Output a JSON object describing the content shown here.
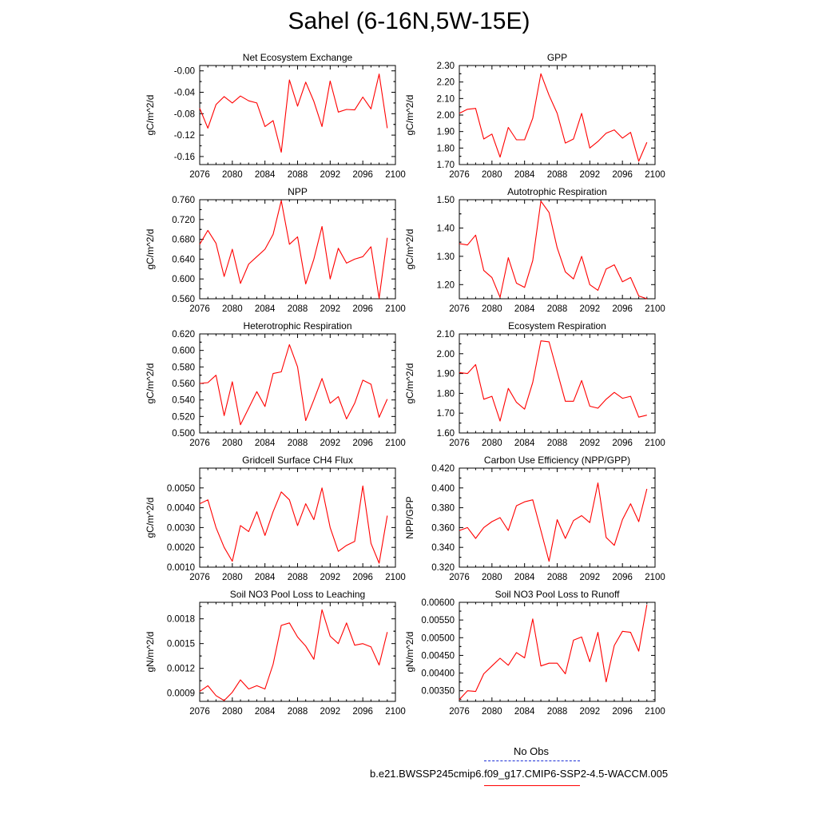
{
  "title": "Sahel (6-16N,5W-15E)",
  "legend": {
    "obs_label": "No Obs",
    "model_label": "b.e21.BWSSP245cmip6.f09_g17.CMIP6-SSP2-4.5-WACCM.005",
    "obs_color": "#1b2fd6",
    "model_color": "#ff0000"
  },
  "chart_data": [
    {
      "type": "line",
      "title": "Net Ecosystem Exchange",
      "ylabel": "gC/m^2/d",
      "xlim": [
        2076,
        2100
      ],
      "ylim": [
        -0.175,
        0.01
      ],
      "xticks": [
        2076,
        2080,
        2084,
        2088,
        2092,
        2096,
        2100
      ],
      "yticks": [
        -0.16,
        -0.12,
        -0.08,
        -0.04,
        0.0
      ],
      "ytick_labels": [
        "-0.16",
        "-0.12",
        "-0.08",
        "-0.04",
        "-0.00"
      ],
      "x": [
        2076,
        2077,
        2078,
        2079,
        2080,
        2081,
        2082,
        2083,
        2084,
        2085,
        2086,
        2087,
        2088,
        2089,
        2090,
        2091,
        2092,
        2093,
        2094,
        2095,
        2096,
        2097,
        2098,
        2099
      ],
      "series": [
        {
          "values": [
            -0.07,
            -0.107,
            -0.063,
            -0.048,
            -0.06,
            -0.047,
            -0.056,
            -0.06,
            -0.104,
            -0.093,
            -0.152,
            -0.017,
            -0.066,
            -0.021,
            -0.057,
            -0.104,
            -0.019,
            -0.077,
            -0.072,
            -0.073,
            -0.049,
            -0.071,
            -0.006,
            -0.107
          ]
        }
      ]
    },
    {
      "type": "line",
      "title": "GPP",
      "ylabel": "gC/m^2/d",
      "xlim": [
        2076,
        2100
      ],
      "ylim": [
        1.7,
        2.3
      ],
      "xticks": [
        2076,
        2080,
        2084,
        2088,
        2092,
        2096,
        2100
      ],
      "yticks": [
        1.7,
        1.8,
        1.9,
        2.0,
        2.1,
        2.2,
        2.3
      ],
      "ytick_labels": [
        "1.70",
        "1.80",
        "1.90",
        "2.00",
        "2.10",
        "2.20",
        "2.30"
      ],
      "x": [
        2076,
        2077,
        2078,
        2079,
        2080,
        2081,
        2082,
        2083,
        2084,
        2085,
        2086,
        2087,
        2088,
        2089,
        2090,
        2091,
        2092,
        2093,
        2094,
        2095,
        2096,
        2097,
        2098,
        2099
      ],
      "series": [
        {
          "values": [
            2.01,
            2.035,
            2.04,
            1.855,
            1.885,
            1.745,
            1.925,
            1.85,
            1.85,
            1.98,
            2.25,
            2.12,
            2.01,
            1.83,
            1.855,
            2.01,
            1.8,
            1.84,
            1.89,
            1.91,
            1.86,
            1.895,
            1.72,
            1.835
          ]
        }
      ]
    },
    {
      "type": "line",
      "title": "NPP",
      "ylabel": "gC/m^2/d",
      "xlim": [
        2076,
        2100
      ],
      "ylim": [
        0.56,
        0.76
      ],
      "xticks": [
        2076,
        2080,
        2084,
        2088,
        2092,
        2096,
        2100
      ],
      "yticks": [
        0.56,
        0.6,
        0.64,
        0.68,
        0.72,
        0.76
      ],
      "ytick_labels": [
        "0.560",
        "0.600",
        "0.640",
        "0.680",
        "0.720",
        "0.760"
      ],
      "x": [
        2076,
        2077,
        2078,
        2079,
        2080,
        2081,
        2082,
        2083,
        2084,
        2085,
        2086,
        2087,
        2088,
        2089,
        2090,
        2091,
        2092,
        2093,
        2094,
        2095,
        2096,
        2097,
        2098,
        2099
      ],
      "series": [
        {
          "values": [
            0.67,
            0.698,
            0.672,
            0.605,
            0.66,
            0.591,
            0.63,
            0.645,
            0.66,
            0.69,
            0.758,
            0.67,
            0.685,
            0.59,
            0.64,
            0.706,
            0.6,
            0.662,
            0.632,
            0.64,
            0.645,
            0.665,
            0.561,
            0.683
          ]
        }
      ]
    },
    {
      "type": "line",
      "title": "Autotrophic Respiration",
      "ylabel": "gC/m^2/d",
      "xlim": [
        2076,
        2100
      ],
      "ylim": [
        1.15,
        1.5
      ],
      "xticks": [
        2076,
        2080,
        2084,
        2088,
        2092,
        2096,
        2100
      ],
      "yticks": [
        1.2,
        1.3,
        1.4,
        1.5
      ],
      "ytick_labels": [
        "1.20",
        "1.30",
        "1.40",
        "1.50"
      ],
      "x": [
        2076,
        2077,
        2078,
        2079,
        2080,
        2081,
        2082,
        2083,
        2084,
        2085,
        2086,
        2087,
        2088,
        2089,
        2090,
        2091,
        2092,
        2093,
        2094,
        2095,
        2096,
        2097,
        2098,
        2099
      ],
      "series": [
        {
          "values": [
            1.345,
            1.34,
            1.375,
            1.25,
            1.225,
            1.155,
            1.295,
            1.205,
            1.19,
            1.285,
            1.495,
            1.455,
            1.33,
            1.245,
            1.22,
            1.3,
            1.2,
            1.18,
            1.255,
            1.27,
            1.21,
            1.225,
            1.16,
            1.15
          ]
        }
      ]
    },
    {
      "type": "line",
      "title": "Heterotrophic Respiration",
      "ylabel": "gC/m^2/d",
      "xlim": [
        2076,
        2100
      ],
      "ylim": [
        0.5,
        0.62
      ],
      "xticks": [
        2076,
        2080,
        2084,
        2088,
        2092,
        2096,
        2100
      ],
      "yticks": [
        0.5,
        0.52,
        0.54,
        0.56,
        0.58,
        0.6,
        0.62
      ],
      "ytick_labels": [
        "0.500",
        "0.520",
        "0.540",
        "0.560",
        "0.580",
        "0.600",
        "0.620"
      ],
      "x": [
        2076,
        2077,
        2078,
        2079,
        2080,
        2081,
        2082,
        2083,
        2084,
        2085,
        2086,
        2087,
        2088,
        2089,
        2090,
        2091,
        2092,
        2093,
        2094,
        2095,
        2096,
        2097,
        2098,
        2099
      ],
      "series": [
        {
          "values": [
            0.56,
            0.561,
            0.57,
            0.521,
            0.562,
            0.51,
            0.53,
            0.55,
            0.532,
            0.572,
            0.574,
            0.607,
            0.58,
            0.515,
            0.54,
            0.566,
            0.536,
            0.544,
            0.517,
            0.536,
            0.564,
            0.559,
            0.519,
            0.541
          ]
        }
      ]
    },
    {
      "type": "line",
      "title": "Ecosystem Respiration",
      "ylabel": "gC/m^2/d",
      "xlim": [
        2076,
        2100
      ],
      "ylim": [
        1.6,
        2.1
      ],
      "xticks": [
        2076,
        2080,
        2084,
        2088,
        2092,
        2096,
        2100
      ],
      "yticks": [
        1.6,
        1.7,
        1.8,
        1.9,
        2.0,
        2.1
      ],
      "ytick_labels": [
        "1.60",
        "1.70",
        "1.80",
        "1.90",
        "2.00",
        "2.10"
      ],
      "x": [
        2076,
        2077,
        2078,
        2079,
        2080,
        2081,
        2082,
        2083,
        2084,
        2085,
        2086,
        2087,
        2088,
        2089,
        2090,
        2091,
        2092,
        2093,
        2094,
        2095,
        2096,
        2097,
        2098,
        2099
      ],
      "series": [
        {
          "values": [
            1.905,
            1.9,
            1.945,
            1.77,
            1.785,
            1.66,
            1.825,
            1.755,
            1.72,
            1.855,
            2.065,
            2.06,
            1.91,
            1.76,
            1.76,
            1.865,
            1.735,
            1.725,
            1.77,
            1.805,
            1.775,
            1.785,
            1.68,
            1.69
          ]
        }
      ]
    },
    {
      "type": "line",
      "title": "Gridcell Surface CH4 Flux",
      "ylabel": "gC/m^2/d",
      "xlim": [
        2076,
        2100
      ],
      "ylim": [
        0.001,
        0.006
      ],
      "xticks": [
        2076,
        2080,
        2084,
        2088,
        2092,
        2096,
        2100
      ],
      "yticks": [
        0.001,
        0.002,
        0.003,
        0.004,
        0.005
      ],
      "ytick_labels": [
        "0.0010",
        "0.0020",
        "0.0030",
        "0.0040",
        "0.0050"
      ],
      "x": [
        2076,
        2077,
        2078,
        2079,
        2080,
        2081,
        2082,
        2083,
        2084,
        2085,
        2086,
        2087,
        2088,
        2089,
        2090,
        2091,
        2092,
        2093,
        2094,
        2095,
        2096,
        2097,
        2098,
        2099
      ],
      "series": [
        {
          "values": [
            0.0042,
            0.0044,
            0.003,
            0.002,
            0.0013,
            0.0031,
            0.0028,
            0.0038,
            0.0026,
            0.0038,
            0.0048,
            0.0044,
            0.0031,
            0.0042,
            0.0034,
            0.005,
            0.003,
            0.0018,
            0.0021,
            0.0023,
            0.0051,
            0.0022,
            0.0012,
            0.0036
          ]
        }
      ]
    },
    {
      "type": "line",
      "title": "Carbon Use Efficiency (NPP/GPP)",
      "ylabel": "NPP/GPP",
      "xlim": [
        2076,
        2100
      ],
      "ylim": [
        0.32,
        0.42
      ],
      "xticks": [
        2076,
        2080,
        2084,
        2088,
        2092,
        2096,
        2100
      ],
      "yticks": [
        0.32,
        0.34,
        0.36,
        0.38,
        0.4,
        0.42
      ],
      "ytick_labels": [
        "0.320",
        "0.340",
        "0.360",
        "0.380",
        "0.400",
        "0.420"
      ],
      "x": [
        2076,
        2077,
        2078,
        2079,
        2080,
        2081,
        2082,
        2083,
        2084,
        2085,
        2086,
        2087,
        2088,
        2089,
        2090,
        2091,
        2092,
        2093,
        2094,
        2095,
        2096,
        2097,
        2098,
        2099
      ],
      "series": [
        {
          "values": [
            0.357,
            0.36,
            0.349,
            0.36,
            0.366,
            0.37,
            0.357,
            0.382,
            0.386,
            0.388,
            0.357,
            0.326,
            0.368,
            0.349,
            0.367,
            0.372,
            0.365,
            0.405,
            0.35,
            0.342,
            0.368,
            0.384,
            0.366,
            0.399
          ]
        }
      ]
    },
    {
      "type": "line",
      "title": "Soil NO3 Pool Loss to Leaching",
      "ylabel": "gN/m^2/d",
      "xlim": [
        2076,
        2100
      ],
      "ylim": [
        0.0008,
        0.002
      ],
      "xticks": [
        2076,
        2080,
        2084,
        2088,
        2092,
        2096,
        2100
      ],
      "yticks": [
        0.0009,
        0.0012,
        0.0015,
        0.0018
      ],
      "ytick_labels": [
        "0.0009",
        "0.0012",
        "0.0015",
        "0.0018"
      ],
      "x": [
        2076,
        2077,
        2078,
        2079,
        2080,
        2081,
        2082,
        2083,
        2084,
        2085,
        2086,
        2087,
        2088,
        2089,
        2090,
        2091,
        2092,
        2093,
        2094,
        2095,
        2096,
        2097,
        2098,
        2099
      ],
      "series": [
        {
          "values": [
            0.00092,
            0.00099,
            0.00087,
            0.00081,
            0.00091,
            0.00106,
            0.00095,
            0.00099,
            0.00095,
            0.00125,
            0.00172,
            0.00175,
            0.00158,
            0.00147,
            0.00131,
            0.00191,
            0.00159,
            0.0015,
            0.00175,
            0.00148,
            0.0015,
            0.00146,
            0.00124,
            0.00164
          ]
        }
      ]
    },
    {
      "type": "line",
      "title": "Soil NO3 Pool Loss to Runoff",
      "ylabel": "gN/m^2/d",
      "xlim": [
        2076,
        2100
      ],
      "ylim": [
        0.0032,
        0.006
      ],
      "xticks": [
        2076,
        2080,
        2084,
        2088,
        2092,
        2096,
        2100
      ],
      "yticks": [
        0.0035,
        0.004,
        0.0045,
        0.005,
        0.0055,
        0.006
      ],
      "ytick_labels": [
        "0.00350",
        "0.00400",
        "0.00450",
        "0.00500",
        "0.00550",
        "0.00600"
      ],
      "x": [
        2076,
        2077,
        2078,
        2079,
        2080,
        2081,
        2082,
        2083,
        2084,
        2085,
        2086,
        2087,
        2088,
        2089,
        2090,
        2091,
        2092,
        2093,
        2094,
        2095,
        2096,
        2097,
        2098,
        2099
      ],
      "series": [
        {
          "values": [
            0.00325,
            0.0035,
            0.00348,
            0.00398,
            0.0042,
            0.00442,
            0.00422,
            0.00458,
            0.00443,
            0.00553,
            0.0042,
            0.00428,
            0.00428,
            0.00398,
            0.00493,
            0.00502,
            0.00432,
            0.00515,
            0.00375,
            0.00478,
            0.00518,
            0.00515,
            0.00462,
            0.00593
          ]
        }
      ]
    }
  ]
}
